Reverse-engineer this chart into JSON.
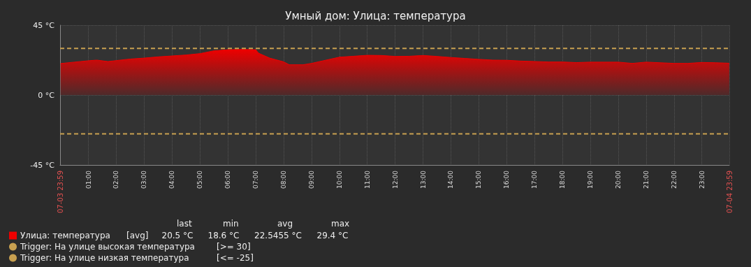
{
  "chart_data": {
    "type": "area",
    "title": "Умный дом: Улица: температура",
    "x": [
      0,
      0.5,
      1,
      1.3,
      1.7,
      2,
      2.5,
      3,
      3.5,
      4,
      4.5,
      5,
      5.5,
      6,
      6.5,
      7,
      7.1,
      7.5,
      8,
      8.2,
      8.7,
      9,
      9.5,
      10,
      10.5,
      11,
      11.5,
      12,
      12.5,
      13,
      13.5,
      14,
      14.5,
      15,
      15.5,
      16,
      16.5,
      17,
      17.5,
      18,
      18.5,
      19,
      19.5,
      20,
      20.5,
      21,
      21.5,
      22,
      22.5,
      23,
      23.5,
      23.98
    ],
    "series": [
      {
        "name": "Улица: температура",
        "color": "#ee0000",
        "values": [
          20.3,
          21.2,
          22.1,
          22.5,
          21.6,
          22.2,
          23.2,
          23.8,
          24.6,
          25.2,
          25.8,
          26.7,
          28.5,
          29.2,
          29.4,
          29.2,
          27.0,
          23.8,
          21.4,
          19.5,
          19.5,
          20.4,
          22.4,
          24.4,
          25.0,
          25.6,
          25.5,
          24.9,
          25.0,
          25.5,
          24.9,
          24.2,
          23.6,
          23.0,
          22.5,
          22.4,
          21.9,
          21.6,
          21.3,
          21.3,
          20.9,
          21.2,
          21.2,
          21.2,
          20.4,
          21.2,
          20.8,
          20.4,
          20.4,
          21.0,
          20.8,
          20.5
        ]
      }
    ],
    "xlim": [
      -0.0167,
      23.9833
    ],
    "xticks": [
      {
        "value": -0.0167,
        "label": "07-03 23:59"
      },
      {
        "value": 1,
        "label": "01:00"
      },
      {
        "value": 2,
        "label": "02:00"
      },
      {
        "value": 3,
        "label": "03:00"
      },
      {
        "value": 4,
        "label": "04:00"
      },
      {
        "value": 5,
        "label": "05:00"
      },
      {
        "value": 6,
        "label": "06:00"
      },
      {
        "value": 7,
        "label": "07:00"
      },
      {
        "value": 8,
        "label": "08:00"
      },
      {
        "value": 9,
        "label": "09:00"
      },
      {
        "value": 10,
        "label": "10:00"
      },
      {
        "value": 11,
        "label": "11:00"
      },
      {
        "value": 12,
        "label": "12:00"
      },
      {
        "value": 13,
        "label": "13:00"
      },
      {
        "value": 14,
        "label": "14:00"
      },
      {
        "value": 15,
        "label": "15:00"
      },
      {
        "value": 16,
        "label": "16:00"
      },
      {
        "value": 17,
        "label": "17:00"
      },
      {
        "value": 18,
        "label": "18:00"
      },
      {
        "value": 19,
        "label": "19:00"
      },
      {
        "value": 20,
        "label": "20:00"
      },
      {
        "value": 21,
        "label": "21:00"
      },
      {
        "value": 22,
        "label": "22:00"
      },
      {
        "value": 23,
        "label": "23:00"
      },
      {
        "value": 23.9833,
        "label": "07-04 23:59"
      }
    ],
    "ylim": [
      -45,
      45
    ],
    "yticks": [
      {
        "value": -45,
        "label": "-45 °C"
      },
      {
        "value": 0,
        "label": "0 °C"
      },
      {
        "value": 45,
        "label": "45 °C"
      }
    ],
    "ref_lines": [
      {
        "axis": "y",
        "value": 30,
        "label": "Trigger: На улице высокая температура",
        "color": "#c8a050",
        "line_style": "dashed"
      },
      {
        "axis": "y",
        "value": -25,
        "label": "Trigger: На улице низкая температура",
        "color": "#c8a050",
        "line_style": "dashed"
      }
    ],
    "annotations": [
      "[avg]",
      "last",
      "min",
      "avg",
      "max",
      "20.5 °C",
      "18.6 °C",
      "22.5455 °C",
      "29.4 °C",
      "[>= 30]",
      "[<= -25]"
    ],
    "grid": true,
    "legend": "bottom left"
  }
}
